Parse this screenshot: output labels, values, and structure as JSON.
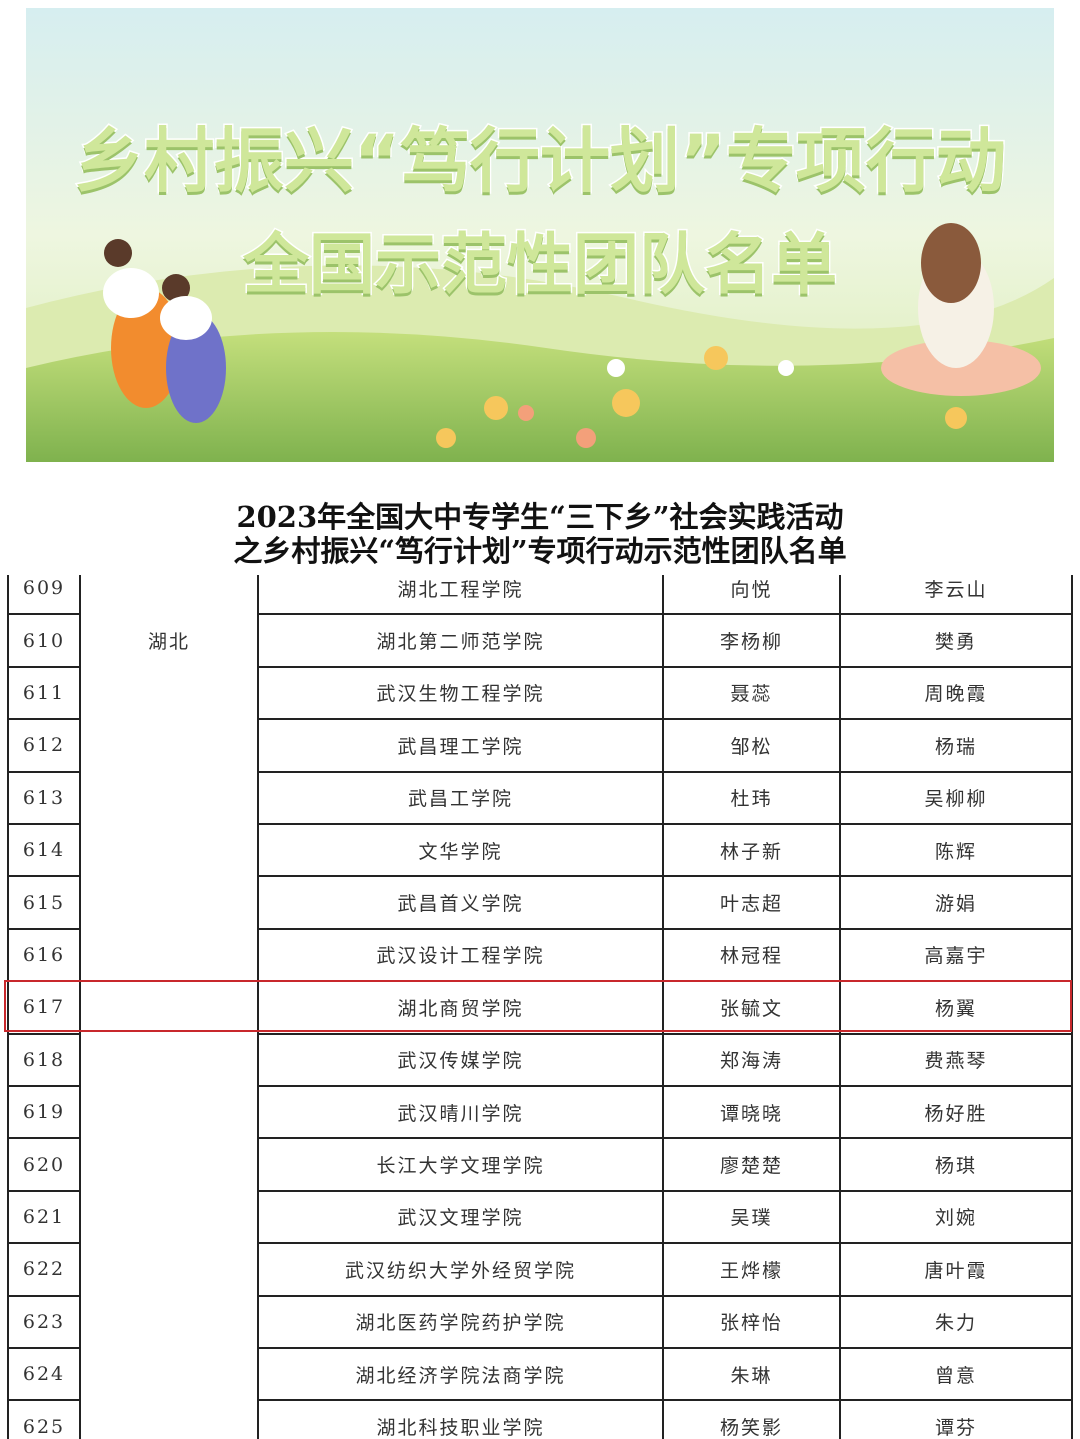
{
  "banner": {
    "title_lines": [
      "乡村振兴“笃行计划”专项行动",
      "全国示范性团队名单"
    ]
  },
  "document": {
    "title_lines": [
      "2023年全国大中专学生“三下乡”社会实践活动",
      "之乡村振兴“笃行计划”专项行动示范性团队名单"
    ]
  },
  "table": {
    "province": "湖北",
    "rows": [
      [
        "609",
        "湖北工程学院",
        "向悦",
        "李云山"
      ],
      [
        "610",
        "湖北第二师范学院",
        "李杨柳",
        "樊勇"
      ],
      [
        "611",
        "武汉生物工程学院",
        "聂蕊",
        "周晚霞"
      ],
      [
        "612",
        "武昌理工学院",
        "邹松",
        "杨瑞"
      ],
      [
        "613",
        "武昌工学院",
        "杜玮",
        "吴柳柳"
      ],
      [
        "614",
        "文华学院",
        "林子新",
        "陈辉"
      ],
      [
        "615",
        "武昌首义学院",
        "叶志超",
        "游娟"
      ],
      [
        "616",
        "武汉设计工程学院",
        "林冠程",
        "高嘉宇"
      ],
      [
        "617",
        "湖北商贸学院",
        "张毓文",
        "杨翼"
      ],
      [
        "618",
        "武汉传媒学院",
        "郑海涛",
        "费燕琴"
      ],
      [
        "619",
        "武汉晴川学院",
        "谭晓晓",
        "杨好胜"
      ],
      [
        "620",
        "长江大学文理学院",
        "廖楚楚",
        "杨琪"
      ],
      [
        "621",
        "武汉文理学院",
        "吴璞",
        "刘婉"
      ],
      [
        "622",
        "武汉纺织大学外经贸学院",
        "王烨檬",
        "唐叶霞"
      ],
      [
        "623",
        "湖北医药学院药护学院",
        "张梓怡",
        "朱力"
      ],
      [
        "624",
        "湖北经济学院法商学院",
        "朱琳",
        "曾意"
      ],
      [
        "625",
        "湖北科技职业学院",
        "杨笑影",
        "谭芬"
      ]
    ]
  }
}
